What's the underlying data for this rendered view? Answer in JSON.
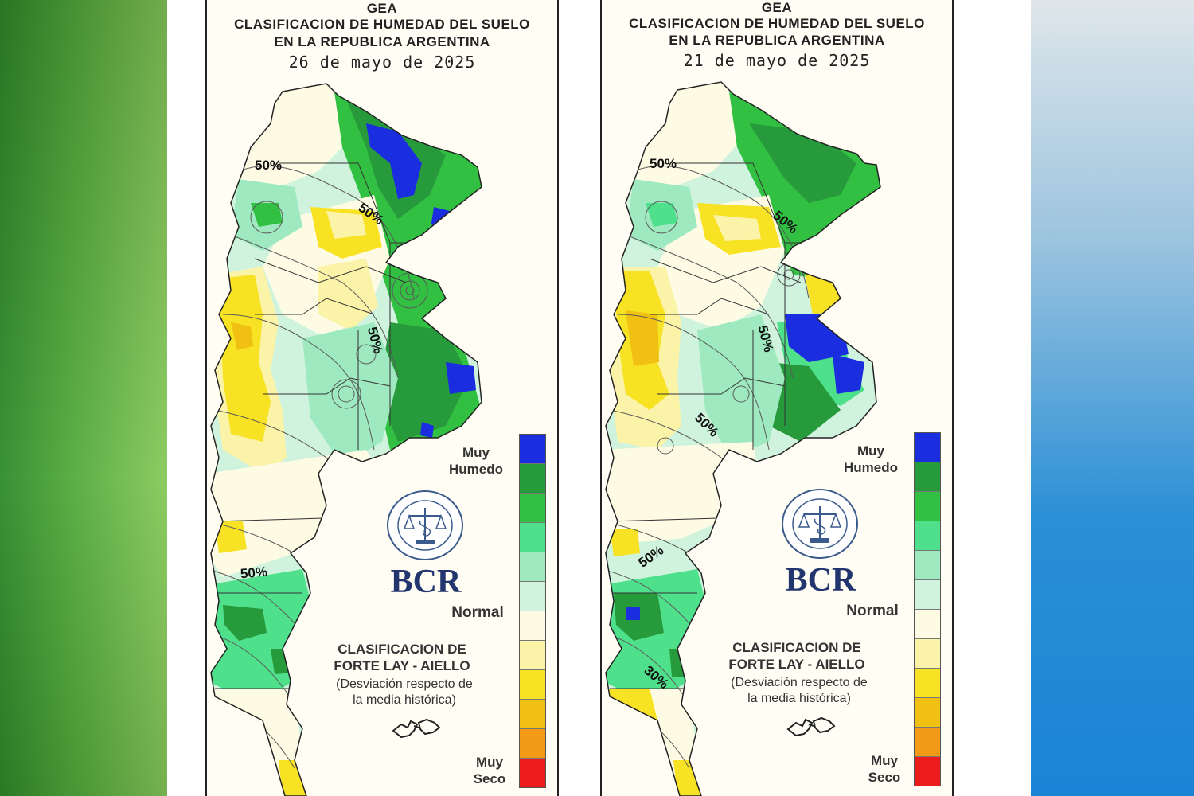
{
  "maps": [
    {
      "header": "GEA",
      "title_line1": "CLASIFICACION DE HUMEDAD DEL SUELO",
      "title_line2": "EN LA REPUBLICA ARGENTINA",
      "date": "26 de mayo de 2025",
      "contour_labels": [
        "50%",
        "50%",
        "50%",
        "50%"
      ]
    },
    {
      "header": "GEA",
      "title_line1": "CLASIFICACION DE HUMEDAD DEL SUELO",
      "title_line2": "EN LA REPUBLICA ARGENTINA",
      "date": "21 de mayo de 2025",
      "contour_labels": [
        "50%",
        "50%",
        "50%",
        "50%",
        "50%",
        "30%"
      ]
    }
  ],
  "legend": {
    "top_label": "Muy\nHumedo",
    "mid_label": "Normal",
    "bottom_label": "Muy\nSeco",
    "colors": [
      "#1a2ee0",
      "#279a3c",
      "#31c041",
      "#4fe08c",
      "#9ee9bf",
      "#cff3dc",
      "#fdfbe4",
      "#fbf3a8",
      "#f7e224",
      "#f0c012",
      "#f39a16",
      "#ec1c1c"
    ]
  },
  "branding": {
    "logo_text": "BCR",
    "seal_text": "BOLSA DE COMERCIO DE ROSARIO",
    "classification_line1": "CLASIFICACION DE",
    "classification_line2": "FORTE LAY - AIELLO",
    "deviation_line1": "(Desviación respecto de",
    "deviation_line2": "la media histórica)"
  }
}
